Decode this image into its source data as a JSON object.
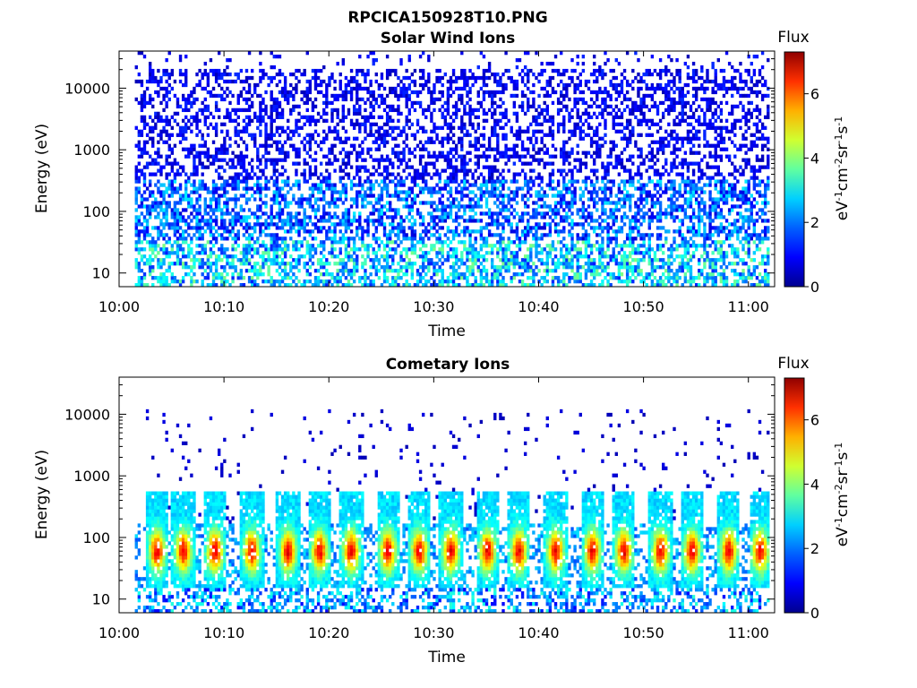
{
  "figure": {
    "title": "RPCICA150928T10.PNG",
    "colormap": [
      "#00008f",
      "#0000ff",
      "#0080ff",
      "#00ffff",
      "#80ff80",
      "#ffff00",
      "#ff8000",
      "#ff0000",
      "#800000"
    ]
  },
  "chart_data": [
    {
      "type": "heatmap",
      "title": "Solar Wind Ions",
      "xlabel": "Time",
      "ylabel": "Energy (eV)",
      "x_ticks": [
        "10:00",
        "10:10",
        "10:20",
        "10:30",
        "10:40",
        "10:50",
        "11:00"
      ],
      "x_range_minutes": [
        0,
        62.5
      ],
      "y_ticks": [
        "10",
        "100",
        "1000",
        "10000"
      ],
      "y_tick_values": [
        10,
        100,
        1000,
        10000
      ],
      "y_range": [
        6,
        40000
      ],
      "y_scale": "log",
      "colorbar": {
        "label": "Flux",
        "unit": "eV-1cm-2sr-1s-1",
        "ticks": [
          "0",
          "2",
          "4",
          "6"
        ],
        "range": [
          0,
          7.3
        ]
      },
      "data_extent_minutes": [
        1.5,
        62
      ]
    },
    {
      "type": "heatmap",
      "title": "Cometary Ions",
      "xlabel": "Time",
      "ylabel": "Energy (eV)",
      "x_ticks": [
        "10:00",
        "10:10",
        "10:20",
        "10:30",
        "10:40",
        "10:50",
        "11:00"
      ],
      "x_range_minutes": [
        0,
        62.5
      ],
      "y_ticks": [
        "10",
        "100",
        "1000",
        "10000"
      ],
      "y_tick_values": [
        10,
        100,
        1000,
        10000
      ],
      "y_range": [
        6,
        40000
      ],
      "y_scale": "log",
      "colorbar": {
        "label": "Flux",
        "unit": "eV-1cm-2sr-1s-1",
        "ticks": [
          "0",
          "2",
          "4",
          "6"
        ],
        "range": [
          0,
          7.3
        ]
      },
      "data_extent_minutes": [
        1.5,
        62
      ],
      "burst_centers_minutes": [
        3.5,
        6,
        9,
        12.5,
        16,
        19,
        22,
        25.5,
        28.5,
        31.5,
        35,
        38,
        41.5,
        45,
        48,
        51.5,
        54.5,
        58,
        61
      ]
    }
  ]
}
